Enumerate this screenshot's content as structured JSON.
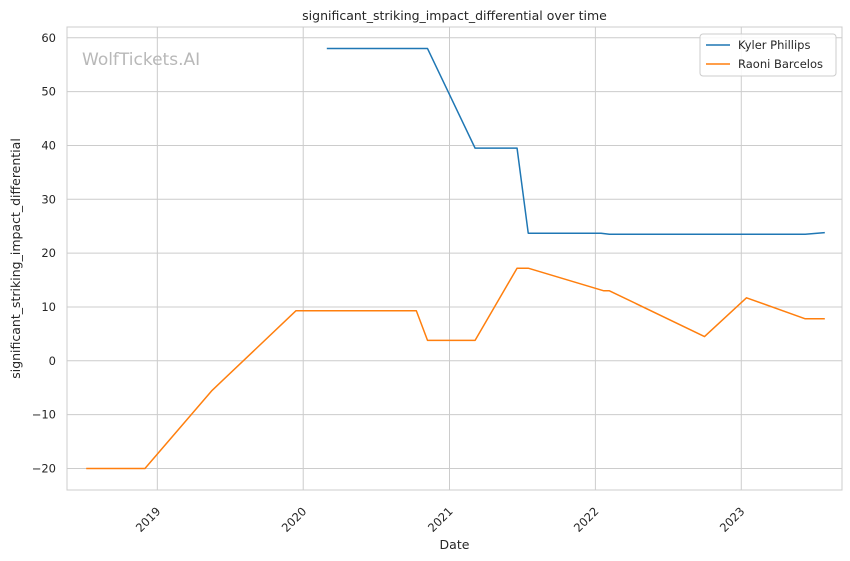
{
  "chart_data": {
    "type": "line",
    "title": "significant_striking_impact_differential over time",
    "xlabel": "Date",
    "ylabel": "significant_striking_impact_differential",
    "watermark": "WolfTickets.AI",
    "x_type": "date",
    "xlim": [
      "2018-05-20",
      "2023-09-10"
    ],
    "ylim": [
      -24,
      62
    ],
    "x_ticks": [
      "2019-01-01",
      "2020-01-01",
      "2021-01-01",
      "2022-01-01",
      "2023-01-01"
    ],
    "x_tick_labels": [
      "2019",
      "2020",
      "2021",
      "2022",
      "2023"
    ],
    "y_ticks": [
      -20,
      -10,
      0,
      10,
      20,
      30,
      40,
      50,
      60
    ],
    "y_tick_labels": [
      "−20",
      "−10",
      "0",
      "10",
      "20",
      "30",
      "40",
      "50",
      "60"
    ],
    "grid": true,
    "legend_position": "top-right",
    "series": [
      {
        "name": "Kyler Phillips",
        "color": "#1f77b4",
        "points": [
          {
            "x": "2020-02-29",
            "y": 58
          },
          {
            "x": "2020-11-07",
            "y": 58
          },
          {
            "x": "2021-03-06",
            "y": 39.5
          },
          {
            "x": "2021-06-19",
            "y": 39.5
          },
          {
            "x": "2021-07-17",
            "y": 23.7
          },
          {
            "x": "2022-01-15",
            "y": 23.7
          },
          {
            "x": "2022-02-05",
            "y": 23.5
          },
          {
            "x": "2023-06-10",
            "y": 23.5
          },
          {
            "x": "2023-07-29",
            "y": 23.8
          }
        ]
      },
      {
        "name": "Raoni Barcelos",
        "color": "#ff7f0e",
        "points": [
          {
            "x": "2018-07-07",
            "y": -20
          },
          {
            "x": "2018-12-01",
            "y": -20
          },
          {
            "x": "2019-05-18",
            "y": -5.5
          },
          {
            "x": "2019-12-14",
            "y": 9.3
          },
          {
            "x": "2020-10-10",
            "y": 9.3
          },
          {
            "x": "2020-11-07",
            "y": 3.8
          },
          {
            "x": "2021-03-06",
            "y": 3.8
          },
          {
            "x": "2021-06-19",
            "y": 17.2
          },
          {
            "x": "2021-07-17",
            "y": 17.2
          },
          {
            "x": "2022-01-22",
            "y": 13
          },
          {
            "x": "2022-02-05",
            "y": 13
          },
          {
            "x": "2022-10-01",
            "y": 4.5
          },
          {
            "x": "2023-01-14",
            "y": 11.7
          },
          {
            "x": "2023-06-10",
            "y": 7.8
          },
          {
            "x": "2023-07-29",
            "y": 7.8
          }
        ]
      }
    ]
  }
}
